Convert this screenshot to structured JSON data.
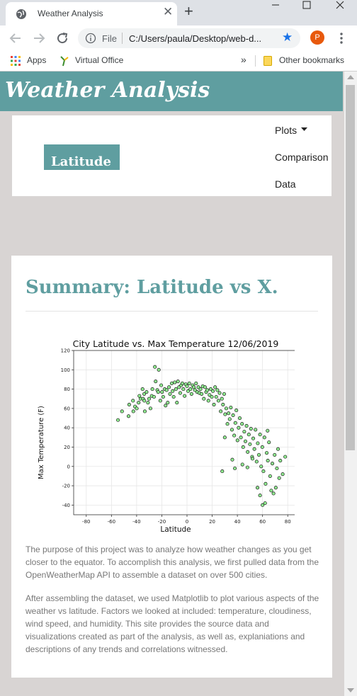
{
  "browser": {
    "tab_title": "Weather Analysis",
    "url_scheme": "File",
    "url": "C:/Users/paula/Desktop/web-d...",
    "profile_initial": "P",
    "bookmarks": {
      "apps": "Apps",
      "virtual_office": "Virtual Office",
      "overflow": "»",
      "other": "Other bookmarks"
    }
  },
  "site": {
    "title": "Weather Analysis",
    "sidebar_label": "Latitude",
    "nav": {
      "plots": "Plots",
      "comparison": "Comparison",
      "data": "Data"
    }
  },
  "summary": {
    "title": "Summary: Latitude vs X.",
    "paragraphs": [
      "The purpose of this project was to analyze how weather changes as you get closer to the equator. To accomplish this analysis, we first pulled data from the OpenWeatherMap API to assemble a dataset on over 500 cities.",
      "After assembling the dataset, we used Matplotlib to plot various aspects of the weather vs latitude. Factors we looked at included: temperature, cloudiness, wind speed, and humidity. This site provides the source data and visualizations created as part of the analysis, as well as, explaniations and descriptions of any trends and correlations witnessed."
    ]
  },
  "colors": {
    "accent": "#5f9ea0",
    "point_fill": "#90ee90",
    "point_edge": "#1a1a1a"
  },
  "chart_data": {
    "type": "scatter",
    "title": "City Latitude vs. Max Temperature 12/06/2019",
    "xlabel": "Latitude",
    "ylabel": "Max Temperature (F)",
    "xlim": [
      -90,
      90
    ],
    "ylim": [
      -50,
      120
    ],
    "xticks": [
      -80,
      -60,
      -40,
      -20,
      0,
      20,
      40,
      60,
      80
    ],
    "yticks": [
      -40,
      -20,
      0,
      20,
      40,
      60,
      80,
      100,
      120
    ],
    "grid": true,
    "points": [
      [
        -54.8,
        48
      ],
      [
        -51.6,
        57
      ],
      [
        -46.4,
        52
      ],
      [
        -45.9,
        64
      ],
      [
        -42.9,
        68
      ],
      [
        -42.6,
        57
      ],
      [
        -41.3,
        62
      ],
      [
        -39.9,
        60
      ],
      [
        -38.4,
        66
      ],
      [
        -37.8,
        73
      ],
      [
        -36.9,
        70
      ],
      [
        -35.3,
        80
      ],
      [
        -34.9,
        70
      ],
      [
        -34.0,
        75
      ],
      [
        -33.9,
        68
      ],
      [
        -33.5,
        57
      ],
      [
        -32.1,
        77
      ],
      [
        -31.0,
        66
      ],
      [
        -30.1,
        70
      ],
      [
        -29.0,
        60
      ],
      [
        -28.0,
        73
      ],
      [
        -27.5,
        80
      ],
      [
        -26.2,
        72
      ],
      [
        -25.5,
        103
      ],
      [
        -24.9,
        88
      ],
      [
        -23.6,
        79
      ],
      [
        -22.9,
        77
      ],
      [
        -22.4,
        100
      ],
      [
        -21.2,
        68
      ],
      [
        -20.5,
        84
      ],
      [
        -19.8,
        77
      ],
      [
        -18.9,
        72
      ],
      [
        -17.7,
        80
      ],
      [
        -17.0,
        63
      ],
      [
        -16.2,
        79
      ],
      [
        -15.3,
        66
      ],
      [
        -14.3,
        82
      ],
      [
        -13.5,
        75
      ],
      [
        -12.1,
        86
      ],
      [
        -11.4,
        78
      ],
      [
        -10.6,
        72
      ],
      [
        -9.7,
        87
      ],
      [
        -8.8,
        80
      ],
      [
        -8.0,
        66
      ],
      [
        -7.2,
        88
      ],
      [
        -6.3,
        82
      ],
      [
        -5.4,
        76
      ],
      [
        -4.6,
        84
      ],
      [
        -3.7,
        86
      ],
      [
        -2.9,
        80
      ],
      [
        -1.9,
        73
      ],
      [
        -1.0,
        85
      ],
      [
        0.0,
        83
      ],
      [
        0.9,
        78
      ],
      [
        1.8,
        86
      ],
      [
        2.7,
        80
      ],
      [
        3.6,
        75
      ],
      [
        4.5,
        84
      ],
      [
        5.4,
        82
      ],
      [
        6.3,
        79
      ],
      [
        7.2,
        86
      ],
      [
        8.1,
        77
      ],
      [
        9.0,
        82
      ],
      [
        9.8,
        76
      ],
      [
        10.7,
        80
      ],
      [
        11.6,
        75
      ],
      [
        12.5,
        83
      ],
      [
        13.4,
        70
      ],
      [
        14.3,
        82
      ],
      [
        15.2,
        77
      ],
      [
        16.1,
        79
      ],
      [
        17.0,
        68
      ],
      [
        17.9,
        74
      ],
      [
        18.8,
        80
      ],
      [
        19.7,
        72
      ],
      [
        20.6,
        78
      ],
      [
        21.4,
        64
      ],
      [
        22.3,
        82
      ],
      [
        23.2,
        72
      ],
      [
        24.1,
        79
      ],
      [
        25.0,
        68
      ],
      [
        25.9,
        76
      ],
      [
        26.8,
        57
      ],
      [
        27.7,
        70
      ],
      [
        28.6,
        64
      ],
      [
        29.5,
        75
      ],
      [
        30.3,
        54
      ],
      [
        31.2,
        60
      ],
      [
        32.1,
        44
      ],
      [
        33.0,
        55
      ],
      [
        33.9,
        49
      ],
      [
        34.8,
        61
      ],
      [
        35.7,
        38
      ],
      [
        36.6,
        53
      ],
      [
        37.5,
        32
      ],
      [
        38.4,
        45
      ],
      [
        39.2,
        58
      ],
      [
        40.1,
        27
      ],
      [
        41.0,
        40
      ],
      [
        41.9,
        50
      ],
      [
        42.8,
        30
      ],
      [
        43.7,
        44
      ],
      [
        44.6,
        20
      ],
      [
        45.5,
        36
      ],
      [
        46.4,
        26
      ],
      [
        47.3,
        42
      ],
      [
        48.2,
        15
      ],
      [
        49.1,
        33
      ],
      [
        50.0,
        23
      ],
      [
        50.8,
        39
      ],
      [
        51.7,
        10
      ],
      [
        52.6,
        29
      ],
      [
        53.5,
        18
      ],
      [
        54.4,
        38
      ],
      [
        55.3,
        5
      ],
      [
        56.2,
        24
      ],
      [
        57.1,
        12
      ],
      [
        58.0,
        33
      ],
      [
        58.9,
        0
      ],
      [
        59.8,
        20
      ],
      [
        60.7,
        -5
      ],
      [
        61.5,
        30
      ],
      [
        62.4,
        -18
      ],
      [
        63.3,
        14
      ],
      [
        64.2,
        6
      ],
      [
        65.1,
        25
      ],
      [
        66.0,
        -10
      ],
      [
        66.9,
        -25
      ],
      [
        67.8,
        3
      ],
      [
        68.7,
        -28
      ],
      [
        69.6,
        12
      ],
      [
        70.5,
        -22
      ],
      [
        71.4,
        -2
      ],
      [
        72.3,
        18
      ],
      [
        73.2,
        -12
      ],
      [
        74.1,
        6
      ],
      [
        76.0,
        -8
      ],
      [
        78.0,
        10
      ],
      [
        60.0,
        -40
      ],
      [
        56.0,
        -22
      ],
      [
        48.0,
        -1
      ],
      [
        38.0,
        -2
      ],
      [
        28.0,
        -5
      ],
      [
        44.0,
        2
      ],
      [
        52.0,
        8
      ],
      [
        58.0,
        -30
      ],
      [
        62.0,
        -38
      ],
      [
        64.0,
        37
      ],
      [
        36.0,
        7
      ],
      [
        30.0,
        30
      ]
    ]
  }
}
